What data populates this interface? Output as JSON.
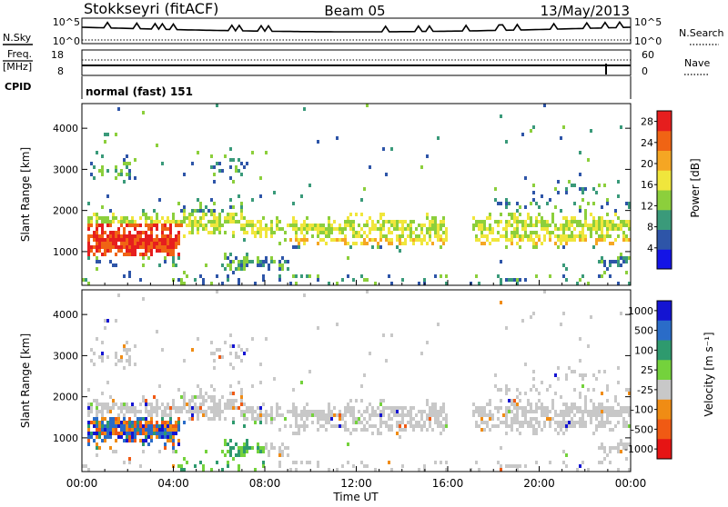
{
  "header": {
    "station": "Stokkseyri (fitACF)",
    "beam": "Beam 05",
    "date": "13/May/2013"
  },
  "params": {
    "nsky_label": "N.Sky",
    "nsky_ticks": [
      "10^5",
      "10^0"
    ],
    "nsearch_label": "N.Search",
    "nsearch_ticks": [
      "10^5",
      "10^0"
    ],
    "freq_label": "Freq.",
    "freq_unit": "[MHz]",
    "freq_ticks": [
      "18",
      "8"
    ],
    "nave_label": "Nave",
    "nave_ticks": [
      "60",
      "0"
    ],
    "cpid_label": "CPID",
    "cpid_value": "normal (fast) 151"
  },
  "colors": {
    "power": [
      "#1414e6",
      "#2e55a8",
      "#3a9a7a",
      "#8ccf3c",
      "#f0e63c",
      "#f5a623",
      "#f06414",
      "#e61e1e"
    ],
    "velocity": [
      "#1414d2",
      "#2a6cc8",
      "#2e9a6e",
      "#74d23c",
      "#c8c8c8",
      "#f08c14",
      "#f05a14",
      "#e61414"
    ]
  },
  "chart_data": [
    {
      "type": "heatmap",
      "title": "Power",
      "ylabel": "Slant Range [km]",
      "y_ticks": [
        "1000",
        "2000",
        "3000",
        "4000"
      ],
      "ylim": [
        180,
        4600
      ],
      "xlim_hours": [
        0,
        24
      ],
      "x_ticks": [
        "00:00",
        "04:00",
        "08:00",
        "12:00",
        "16:00",
        "20:00",
        "00:00"
      ],
      "colorbar_label": "Power [dB]",
      "colorbar_ticks": [
        "4",
        "8",
        "12",
        "16",
        "20",
        "24",
        "28"
      ],
      "colorbar_range": [
        0,
        30
      ]
    },
    {
      "type": "heatmap",
      "title": "Velocity",
      "ylabel": "Slant Range [km]",
      "y_ticks": [
        "1000",
        "2000",
        "3000",
        "4000"
      ],
      "ylim": [
        180,
        4600
      ],
      "xlim_hours": [
        0,
        24
      ],
      "x_ticks": [
        "00:00",
        "04:00",
        "08:00",
        "12:00",
        "16:00",
        "20:00",
        "00:00"
      ],
      "xlabel": "Time UT",
      "colorbar_label": "Velocity [m s⁻¹]",
      "colorbar_ticks": [
        "1000",
        "500",
        "100",
        "25",
        "-25",
        "-100",
        "-500",
        "-1000"
      ]
    }
  ]
}
